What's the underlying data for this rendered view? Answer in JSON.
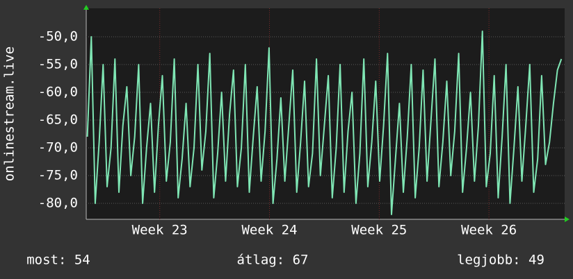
{
  "chart_data": {
    "type": "line",
    "y_label": "onlinestream.live",
    "xlim": [
      22.33,
      26.69
    ],
    "xticks": [
      {
        "value": 23,
        "label": "Week 23"
      },
      {
        "value": 24,
        "label": "Week 24"
      },
      {
        "value": 25,
        "label": "Week 25"
      },
      {
        "value": 26,
        "label": "Week 26"
      }
    ],
    "ylim": [
      -82.875,
      -44.875
    ],
    "yticks": [
      {
        "value": -80,
        "label": "-80,0"
      },
      {
        "value": -75,
        "label": "-75,0"
      },
      {
        "value": -70,
        "label": "-70,0"
      },
      {
        "value": -65,
        "label": "-65,0"
      },
      {
        "value": -60,
        "label": "-60,0"
      },
      {
        "value": -55,
        "label": "-55,0"
      },
      {
        "value": -50,
        "label": "-50,0"
      }
    ],
    "grid": true,
    "x": [
      22.34,
      22.376,
      22.412,
      22.448,
      22.484,
      22.52,
      22.556,
      22.592,
      22.628,
      22.664,
      22.7,
      22.736,
      22.772,
      22.808,
      22.844,
      22.88,
      22.916,
      22.952,
      22.988,
      23.024,
      23.06,
      23.096,
      23.132,
      23.168,
      23.204,
      23.24,
      23.276,
      23.312,
      23.348,
      23.384,
      23.42,
      23.456,
      23.492,
      23.528,
      23.564,
      23.6,
      23.636,
      23.672,
      23.708,
      23.744,
      23.78,
      23.816,
      23.852,
      23.888,
      23.924,
      23.96,
      23.996,
      24.032,
      24.068,
      24.104,
      24.14,
      24.176,
      24.212,
      24.248,
      24.284,
      24.32,
      24.356,
      24.392,
      24.428,
      24.464,
      24.5,
      24.536,
      24.572,
      24.608,
      24.644,
      24.68,
      24.716,
      24.752,
      24.788,
      24.824,
      24.86,
      24.896,
      24.932,
      24.968,
      25.004,
      25.04,
      25.076,
      25.112,
      25.148,
      25.184,
      25.22,
      25.256,
      25.292,
      25.328,
      25.364,
      25.4,
      25.436,
      25.472,
      25.508,
      25.544,
      25.58,
      25.616,
      25.652,
      25.688,
      25.724,
      25.76,
      25.796,
      25.832,
      25.868,
      25.904,
      25.94,
      25.976,
      26.012,
      26.048,
      26.084,
      26.12,
      26.156,
      26.192,
      26.228,
      26.264,
      26.3,
      26.336,
      26.372,
      26.408,
      26.444,
      26.48,
      26.516,
      26.552,
      26.588,
      26.624,
      26.66
    ],
    "series": [
      {
        "color": "#7fe6b4",
        "values": [
          -68,
          -50,
          -80,
          -69,
          -55,
          -77,
          -70,
          -54,
          -78,
          -66,
          -59,
          -75,
          -68,
          -55,
          -80,
          -70,
          -62,
          -78,
          -66,
          -57,
          -76,
          -69,
          -54,
          -79,
          -72,
          -62,
          -77,
          -70,
          -55,
          -74,
          -67,
          -53,
          -79,
          -71,
          -60,
          -76,
          -64,
          -56,
          -77,
          -70,
          -55,
          -78,
          -68,
          -59,
          -76,
          -67,
          -52,
          -80,
          -72,
          -61,
          -76,
          -66,
          -56,
          -78,
          -69,
          -58,
          -77,
          -71,
          -54,
          -75,
          -66,
          -57,
          -79,
          -70,
          -55,
          -78,
          -67,
          -60,
          -80,
          -71,
          -54,
          -77,
          -69,
          -58,
          -76,
          -66,
          -53,
          -82,
          -72,
          -62,
          -78,
          -68,
          -55,
          -79,
          -70,
          -56,
          -76,
          -65,
          -54,
          -77,
          -69,
          -58,
          -75,
          -67,
          -53,
          -78,
          -70,
          -60,
          -76,
          -66,
          -49,
          -77,
          -71,
          -57,
          -79,
          -68,
          -55,
          -80,
          -70,
          -59,
          -76,
          -66,
          -55,
          -78,
          -72,
          -57,
          -73,
          -69,
          -62,
          -56,
          -54
        ]
      }
    ],
    "summary": [
      "most: 54",
      "átlag: 67",
      "legjobb: 49"
    ]
  }
}
